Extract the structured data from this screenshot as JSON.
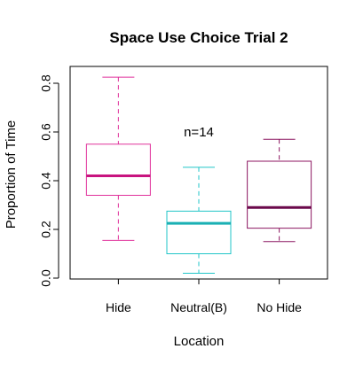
{
  "chart_data": {
    "type": "boxplot",
    "title": "Space Use Choice Trial 2",
    "xlabel": "Location",
    "ylabel": "Proportion of Time",
    "ylim": [
      -0.01,
      0.85
    ],
    "yticks": [
      0.0,
      0.2,
      0.4,
      0.6,
      0.8
    ],
    "ytick_labels": [
      "0.0",
      "0.2",
      "0.4",
      "0.6",
      "0.8"
    ],
    "categories": [
      "Hide",
      "Neutral(B)",
      "No Hide"
    ],
    "boxes": [
      {
        "category": "Hide",
        "min": 0.155,
        "q1": 0.34,
        "median": 0.42,
        "q3": 0.55,
        "max": 0.825,
        "color": "#e0329c",
        "median_color": "#c8147f"
      },
      {
        "category": "Neutral(B)",
        "min": 0.02,
        "q1": 0.1,
        "median": 0.225,
        "q3": 0.275,
        "max": 0.455,
        "color": "#20c5c8",
        "median_color": "#1bb0b4"
      },
      {
        "category": "No Hide",
        "min": 0.15,
        "q1": 0.205,
        "median": 0.29,
        "q3": 0.48,
        "max": 0.57,
        "color": "#8c1660",
        "median_color": "#6b0a4b"
      }
    ],
    "annotations": [
      {
        "text": "n=14",
        "x": 2,
        "y": 0.6
      }
    ],
    "grid": false,
    "legend": "none"
  }
}
